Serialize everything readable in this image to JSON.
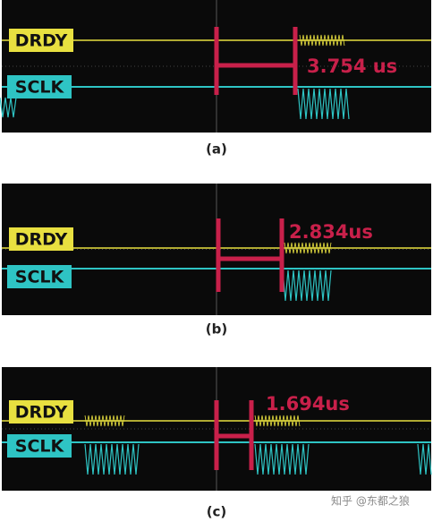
{
  "panels": [
    {
      "drdy_label": "DRDY",
      "sclk_label": "SCLK",
      "measurement": "3.754 us",
      "caption": "(a)"
    },
    {
      "drdy_label": "DRDY",
      "sclk_label": "SCLK",
      "measurement": "2.834us",
      "caption": "(b)"
    },
    {
      "drdy_label": "DRDY",
      "sclk_label": "SCLK",
      "measurement": "1.694us",
      "caption": "(c)"
    }
  ],
  "watermark": "知乎 @东都之狼"
}
